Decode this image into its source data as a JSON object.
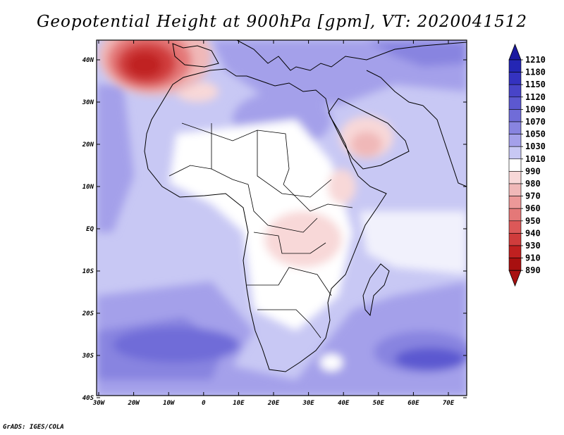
{
  "title": "Geopotential Height at 900hPa [gpm], VT: 2020041512",
  "footer": "GrADS: IGES/COLA",
  "map": {
    "lat_labels": [
      "40N",
      "30N",
      "20N",
      "10N",
      "EQ",
      "10S",
      "20S",
      "30S",
      "40S"
    ],
    "lon_labels": [
      "30W",
      "20W",
      "10W",
      "0",
      "10E",
      "20E",
      "30E",
      "40E",
      "50E",
      "60E",
      "70E"
    ]
  },
  "colorbar": {
    "levels": [
      "1210",
      "1180",
      "1150",
      "1120",
      "1090",
      "1070",
      "1050",
      "1030",
      "1010",
      "990",
      "980",
      "970",
      "960",
      "950",
      "940",
      "930",
      "910",
      "890"
    ],
    "colors": [
      "#1c1aa0",
      "#2426b4",
      "#3432c0",
      "#4844c8",
      "#5c58d0",
      "#706cd8",
      "#8884e0",
      "#a4a0ea",
      "#c8c8f4",
      "#ffffff",
      "#f8d8d8",
      "#f0b8b8",
      "#ec9898",
      "#e47878",
      "#dc5858",
      "#d03c3c",
      "#c02020",
      "#a81010"
    ]
  }
}
